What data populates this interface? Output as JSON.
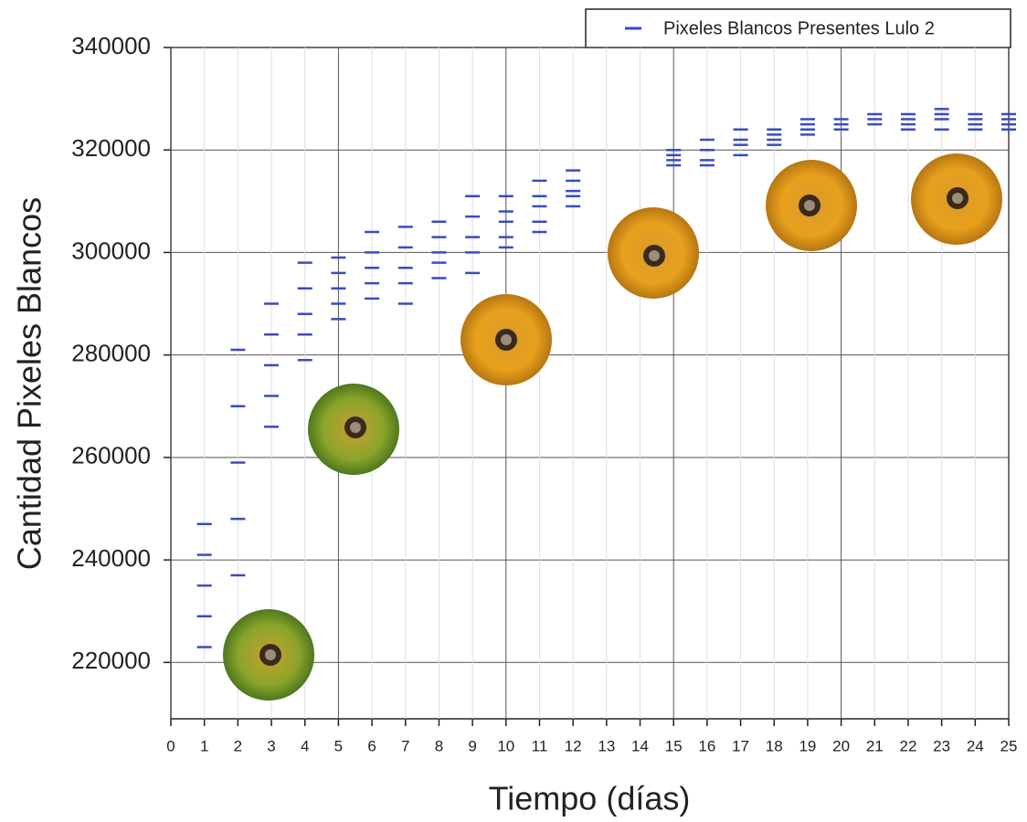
{
  "chart_data": {
    "type": "scatter",
    "x_label": "Tiempo (días)",
    "y_label": "Cantidad Pixeles Blancos",
    "xlim": [
      0,
      25
    ],
    "xticks": [
      0,
      1,
      2,
      3,
      4,
      5,
      6,
      7,
      8,
      9,
      10,
      11,
      12,
      13,
      14,
      15,
      16,
      17,
      18,
      19,
      20,
      21,
      22,
      23,
      24,
      25
    ],
    "ylim": [
      209000,
      340000
    ],
    "yticks": [
      220000,
      240000,
      260000,
      280000,
      300000,
      320000,
      340000
    ],
    "grid": true,
    "legend": "upper right",
    "series": [
      {
        "name": "Pixeles Blancos Presentes Lulo 2",
        "color": "#3a4bc0",
        "x": [
          1,
          1,
          1,
          1,
          1,
          2,
          2,
          2,
          2,
          2,
          3,
          3,
          3,
          3,
          3,
          4,
          4,
          4,
          4,
          4,
          5,
          5,
          5,
          5,
          5,
          6,
          6,
          6,
          6,
          6,
          7,
          7,
          7,
          7,
          7,
          8,
          8,
          8,
          8,
          8,
          9,
          9,
          9,
          9,
          9,
          10,
          10,
          10,
          10,
          10,
          11,
          11,
          11,
          11,
          11,
          12,
          12,
          12,
          12,
          12,
          15,
          15,
          15,
          15,
          16,
          16,
          16,
          16,
          17,
          17,
          17,
          17,
          18,
          18,
          18,
          18,
          19,
          19,
          19,
          19,
          20,
          20,
          20,
          21,
          21,
          21,
          22,
          22,
          22,
          22,
          23,
          23,
          23,
          23,
          24,
          24,
          24,
          24,
          25,
          25,
          25,
          25
        ],
        "values": [
          223000,
          229000,
          235000,
          241000,
          247000,
          237000,
          248000,
          259000,
          270000,
          281000,
          266000,
          272000,
          278000,
          284000,
          290000,
          279000,
          284000,
          288000,
          293000,
          298000,
          287000,
          290000,
          293000,
          296000,
          299000,
          291000,
          294000,
          297000,
          300000,
          304000,
          290000,
          294000,
          297000,
          301000,
          305000,
          295000,
          298000,
          300000,
          303000,
          306000,
          296000,
          300000,
          303000,
          307000,
          311000,
          301000,
          303000,
          306000,
          308000,
          311000,
          304000,
          306000,
          309000,
          311000,
          314000,
          309000,
          311000,
          312000,
          314000,
          316000,
          317000,
          318000,
          319000,
          320000,
          317000,
          318000,
          320000,
          322000,
          319000,
          321000,
          322000,
          324000,
          321000,
          322000,
          323000,
          324000,
          323000,
          324000,
          325000,
          326000,
          324000,
          325000,
          326000,
          325000,
          326000,
          327000,
          324000,
          325000,
          326000,
          327000,
          324000,
          326000,
          327000,
          328000,
          324000,
          325000,
          326000,
          327000,
          324000,
          325000,
          326000,
          327000
        ]
      }
    ]
  }
}
